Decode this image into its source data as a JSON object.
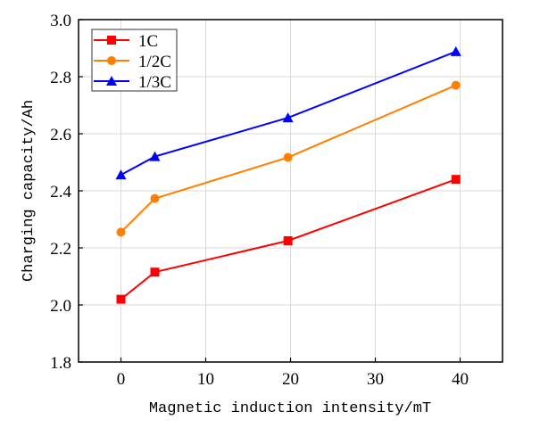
{
  "chart_data": {
    "type": "line",
    "title": "",
    "xlabel": "Magnetic induction intensity/mT",
    "ylabel": "Charging capacity/Ah",
    "xlim": [
      -5,
      45
    ],
    "ylim": [
      1.8,
      3.0
    ],
    "xticks": [
      0,
      10,
      20,
      30,
      40
    ],
    "yticks": [
      1.8,
      2.0,
      2.2,
      2.4,
      2.6,
      2.8,
      3.0
    ],
    "xtick_labels": [
      "0",
      "10",
      "20",
      "30",
      "40"
    ],
    "ytick_labels": [
      "1.8",
      "2.0",
      "2.2",
      "2.4",
      "2.6",
      "2.8",
      "3.0"
    ],
    "grid": true,
    "legend_position": "top-left",
    "x": [
      0,
      4,
      19.7,
      39.5
    ],
    "series": [
      {
        "name": "1C",
        "values": [
          2.02,
          2.115,
          2.225,
          2.44
        ],
        "color": "#ff0000",
        "marker": "square"
      },
      {
        "name": "1/2C",
        "values": [
          2.255,
          2.373,
          2.517,
          2.77
        ],
        "color": "#ff8000",
        "marker": "circle"
      },
      {
        "name": "1/3C",
        "values": [
          2.456,
          2.52,
          2.656,
          2.888
        ],
        "color": "#0000ff",
        "marker": "triangle"
      }
    ]
  }
}
